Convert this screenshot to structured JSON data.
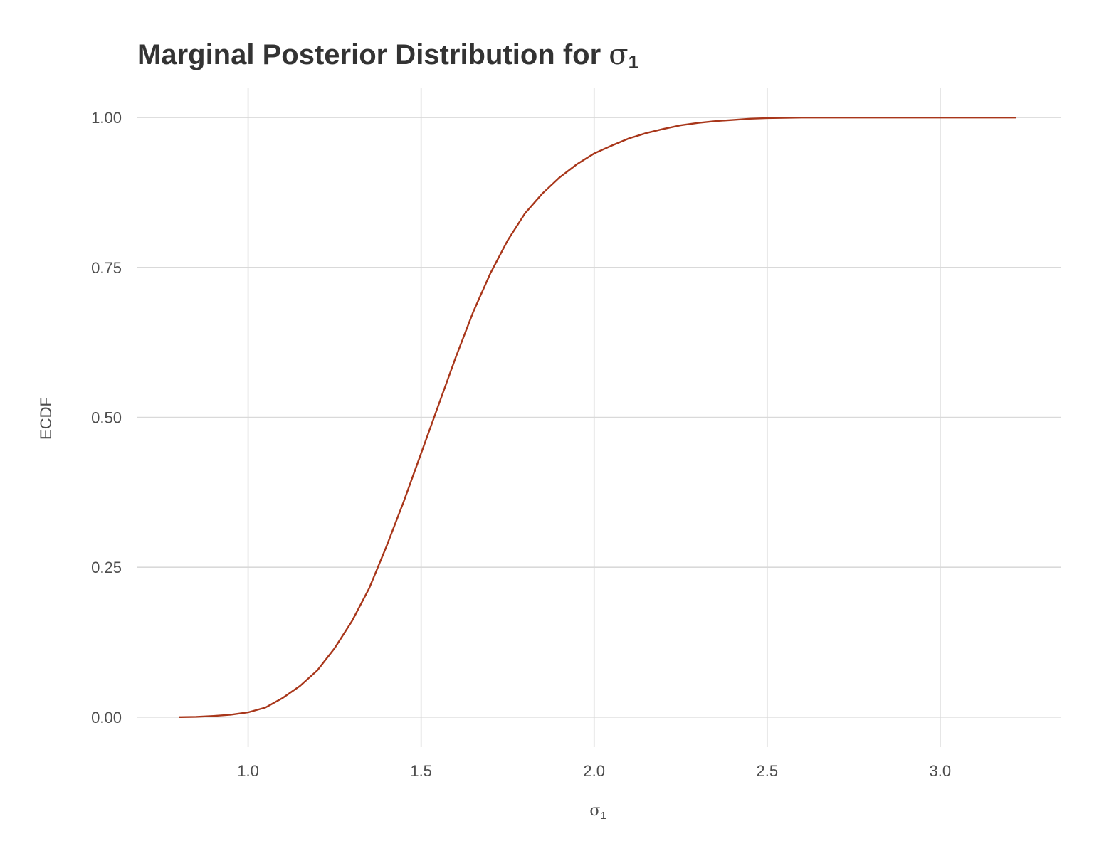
{
  "chart_data": {
    "type": "line",
    "title": "Marginal Posterior Distribution for",
    "title_symbol": "σ",
    "title_subscript": "1",
    "xlabel_symbol": "σ",
    "xlabel_subscript": "1",
    "ylabel": "ECDF",
    "xlim": [
      0.68,
      3.35
    ],
    "ylim": [
      -0.05,
      1.05
    ],
    "x_ticks": [
      1.0,
      1.5,
      2.0,
      2.5,
      3.0
    ],
    "x_tick_labels": [
      "1.0",
      "1.5",
      "2.0",
      "2.5",
      "3.0"
    ],
    "y_ticks": [
      0.0,
      0.25,
      0.5,
      0.75,
      1.0
    ],
    "y_tick_labels": [
      "0.00",
      "0.25",
      "0.50",
      "0.75",
      "1.00"
    ],
    "grid": true,
    "line_color": "#a8361a",
    "series": [
      {
        "x": [
          0.8,
          0.85,
          0.9,
          0.95,
          1.0,
          1.05,
          1.1,
          1.15,
          1.2,
          1.25,
          1.3,
          1.35,
          1.4,
          1.45,
          1.5,
          1.55,
          1.6,
          1.65,
          1.7,
          1.75,
          1.8,
          1.85,
          1.9,
          1.95,
          2.0,
          2.05,
          2.1,
          2.15,
          2.2,
          2.25,
          2.3,
          2.35,
          2.4,
          2.45,
          2.5,
          2.55,
          2.6,
          2.7,
          2.8,
          3.0,
          3.22
        ],
        "y": [
          0.0,
          0.0005,
          0.002,
          0.004,
          0.008,
          0.016,
          0.032,
          0.052,
          0.078,
          0.115,
          0.16,
          0.215,
          0.285,
          0.36,
          0.44,
          0.52,
          0.6,
          0.675,
          0.74,
          0.795,
          0.84,
          0.873,
          0.9,
          0.922,
          0.94,
          0.953,
          0.965,
          0.974,
          0.981,
          0.987,
          0.991,
          0.994,
          0.996,
          0.998,
          0.999,
          0.9995,
          1.0,
          1.0,
          1.0,
          1.0,
          1.0
        ]
      }
    ]
  }
}
